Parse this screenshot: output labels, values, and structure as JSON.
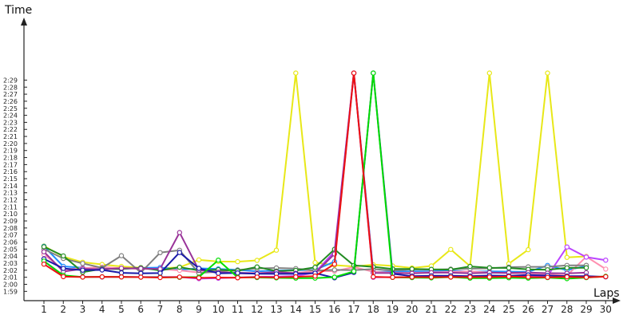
{
  "chart_data": {
    "type": "line",
    "title": "",
    "ylabel": "Time",
    "xlabel": "Laps",
    "x": [
      1,
      2,
      3,
      4,
      5,
      6,
      7,
      8,
      9,
      10,
      11,
      12,
      13,
      14,
      15,
      16,
      17,
      18,
      19,
      20,
      21,
      22,
      23,
      24,
      25,
      26,
      27,
      28,
      29,
      30
    ],
    "y_ticks": [
      "1:59",
      "2:00",
      "2:01",
      "2:02",
      "2:03",
      "2:04",
      "2:05",
      "2:06",
      "2:07",
      "2:08",
      "2:09",
      "2:10",
      "2:11",
      "2:12",
      "2:13",
      "2:14",
      "2:15",
      "2:16",
      "2:17",
      "2:18",
      "2:19",
      "2:20",
      "2:21",
      "2:22",
      "2:23",
      "2:24",
      "2:25",
      "2:26",
      "2:27",
      "2:28",
      "2:29"
    ],
    "ylim_seconds": [
      7135,
      7775
    ],
    "y_unit": "seconds (h:mm shown on axis)",
    "grid": false,
    "series": [
      {
        "color": "#e8e818",
        "values": [
          7526,
          7436,
          7388,
          7369,
          7352,
          7342,
          7336,
          7345,
          7408,
          7394,
          7393,
          7404,
          7491,
          9000,
          7386,
          7363,
          7352,
          7367,
          7357,
          7339,
          7356,
          7497,
          7354,
          9000,
          7375,
          7495,
          9000,
          7430,
          7438,
          null
        ]
      },
      {
        "color": "#1e90ff",
        "values": [
          7524,
          7353,
          7341,
          7333,
          7331,
          7339,
          7343,
          7324,
          7336,
          7331,
          7323,
          7310,
          7317,
          7320,
          7323,
          7393,
          9000,
          7305,
          7308,
          7311,
          7311,
          7317,
          7307,
          7310,
          7308,
          7306,
          7361,
          7320,
          7356,
          null
        ]
      },
      {
        "color": "#ff8fb0",
        "values": [
          7454,
          7326,
          7338,
          7346,
          7337,
          7331,
          7329,
          7319,
          7300,
          7303,
          7299,
          7298,
          7302,
          7298,
          7312,
          7312,
          7347,
          7307,
          7298,
          7298,
          7302,
          7306,
          7310,
          7300,
          7294,
          7293,
          7284,
          7275,
          7436,
          7330
        ]
      },
      {
        "color": "#bb44ff",
        "values": [
          7400,
          7268,
          7264,
          7262,
          7263,
          7262,
          7263,
          7262,
          7248,
          7252,
          7258,
          7264,
          7265,
          7271,
          7300,
          7480,
          9000,
          7260,
          7261,
          7261,
          7261,
          7263,
          7264,
          7260,
          7263,
          7268,
          7270,
          7518,
          7432,
          7406
        ]
      },
      {
        "color": "#808080",
        "values": [
          7500,
          7420,
          7378,
          7340,
          7444,
          7300,
          7470,
          7490,
          7295,
          7310,
          7322,
          7335,
          7339,
          7334,
          7316,
          7323,
          7320,
          7330,
          7317,
          7327,
          7325,
          7329,
          7333,
          7336,
          7346,
          7349,
          7349,
          7361,
          7362,
          null
        ]
      },
      {
        "color": "#228b22",
        "values": [
          7520,
          7442,
          7303,
          7331,
          7331,
          7341,
          7318,
          7346,
          7318,
          7325,
          7315,
          7348,
          7312,
          7319,
          7345,
          7498,
          7361,
          7349,
          7331,
          7331,
          7328,
          7325,
          7352,
          7341,
          7339,
          7327,
          7324,
          7340,
          7341,
          null
        ]
      },
      {
        "color": "#993399",
        "values": [
          7477,
          7309,
          7332,
          7327,
          7337,
          7335,
          7331,
          7641,
          7321,
          7303,
          7294,
          7291,
          7305,
          7294,
          7296,
          7458,
          9000,
          7297,
          7296,
          7294,
          7299,
          7299,
          7294,
          7299,
          7298,
          7300,
          7295,
          7294,
          7299,
          null
        ]
      },
      {
        "color": "#1a1aa8",
        "values": [
          7417,
          7335,
          7320,
          7322,
          7298,
          7294,
          7296,
          7471,
          7336,
          7294,
          7297,
          7290,
          7289,
          7289,
          7295,
          7256,
          7301,
          9000,
          7290,
          7270,
          7273,
          7273,
          7270,
          7275,
          7272,
          7280,
          7275,
          7270,
          7269,
          7264
        ]
      },
      {
        "color": "#00dd00",
        "values": [
          7398,
          7277,
          7262,
          7264,
          7263,
          7261,
          7260,
          7260,
          7262,
          7406,
          7260,
          7258,
          7255,
          7253,
          7253,
          7261,
          7310,
          9000,
          7259,
          7257,
          7255,
          7261,
          7253,
          7253,
          7256,
          7253,
          7257,
          7248,
          7257,
          7268
        ]
      },
      {
        "color": "#ee1111",
        "values": [
          7372,
          7265,
          7262,
          7264,
          7263,
          7261,
          7258,
          7262,
          7255,
          7258,
          7256,
          7262,
          7260,
          7264,
          7270,
          7372,
          9000,
          7264,
          7260,
          7262,
          7261,
          7262,
          7262,
          7262,
          7266,
          7262,
          7259,
          7264,
          7260,
          7265
        ]
      }
    ]
  }
}
